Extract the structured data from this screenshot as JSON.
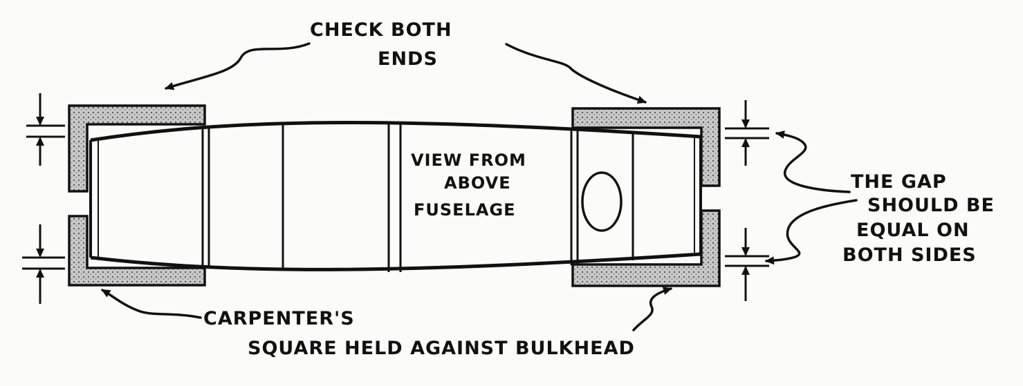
{
  "labels": {
    "check_line1": "CHECK BOTH",
    "check_line2": "ENDS",
    "view_line1": "VIEW FROM",
    "view_line2": "ABOVE",
    "view_line3": "FUSELAGE",
    "gap_line1": "THE GAP",
    "gap_line2": "SHOULD BE",
    "gap_line3": "EQUAL ON",
    "gap_line4": "BOTH SIDES",
    "square_line1": "CARPENTER'S",
    "square_line2": "SQUARE HELD AGAINST BULKHEAD"
  },
  "colors": {
    "ink": "#111111",
    "paper": "#fbfbf9",
    "square_fill": "#bdbdbd"
  }
}
